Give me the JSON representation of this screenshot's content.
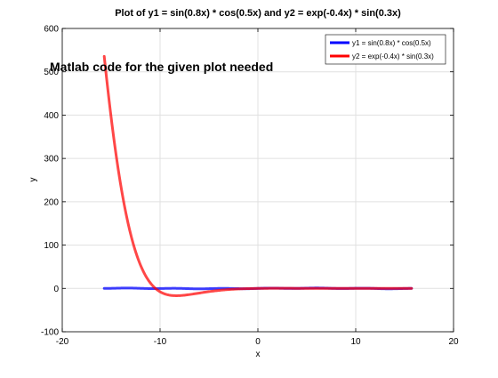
{
  "chart_data": {
    "type": "line",
    "title": "Plot of y1 = sin(0.8x) * cos(0.5x) and y2 = exp(-0.4x) * sin(0.3x)",
    "xlabel": "x",
    "ylabel": "y",
    "xlim": [
      -20,
      20
    ],
    "ylim": [
      -100,
      600
    ],
    "xticks": [
      -20,
      -10,
      0,
      10,
      20
    ],
    "yticks": [
      -100,
      0,
      100,
      200,
      300,
      400,
      500,
      600
    ],
    "grid": true,
    "legend_position": "top-right",
    "annotation": "Matlab code for the given plot needed",
    "x_range": [
      -15.708,
      15.708
    ],
    "series": [
      {
        "name": "y1 = sin(0.8x) * cos(0.5x)",
        "expression": "sin(0.8x) * cos(0.5x)",
        "color": "#0000ff"
      },
      {
        "name": "y2 = exp(-0.4x) * sin(0.3x)",
        "expression": "exp(-0.4x) * sin(0.3x)",
        "color": "#ff0000"
      }
    ]
  }
}
